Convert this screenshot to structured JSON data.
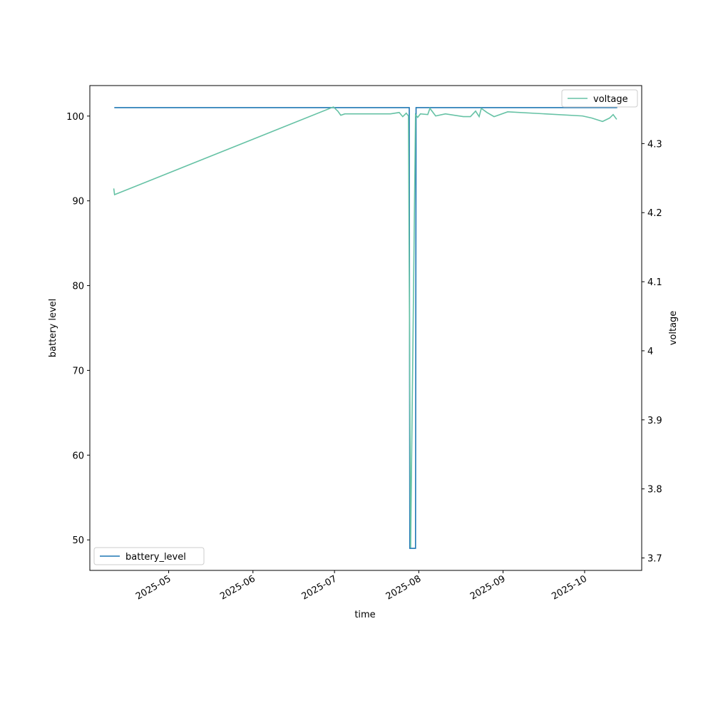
{
  "chart_data": {
    "type": "line",
    "x_label": "time",
    "y_label": "battery level",
    "y2_label": "voltage",
    "xlim": [
      20180,
      20383
    ],
    "xticks": [
      {
        "value": 20209,
        "label": "2025-05"
      },
      {
        "value": 20240,
        "label": "2025-06"
      },
      {
        "value": 20270,
        "label": "2025-07"
      },
      {
        "value": 20301,
        "label": "2025-08"
      },
      {
        "value": 20332,
        "label": "2025-09"
      },
      {
        "value": 20362,
        "label": "2025-10"
      }
    ],
    "ylim": [
      46.4,
      103.6
    ],
    "yticks": [
      50,
      60,
      70,
      80,
      90,
      100
    ],
    "y2lim": [
      3.682,
      4.384
    ],
    "y2ticks": [
      3.7,
      3.8,
      3.9,
      4.0,
      4.1,
      4.2,
      4.3
    ],
    "series": [
      {
        "name": "battery_level",
        "color": "#1f77b4",
        "legend": "lower left",
        "x": [
          20189,
          20297.5,
          20297.7,
          20299.8,
          20300,
          20374
        ],
        "values": [
          101,
          101,
          49,
          49,
          101,
          101
        ]
      },
      {
        "name": "voltage",
        "color": "#66c2a5",
        "axis": "y2",
        "legend": "upper right",
        "x": [
          20188.8,
          20189.1,
          20269.6,
          20271.2,
          20272.3,
          20273.8,
          20290.6,
          20293.8,
          20295.1,
          20296.4,
          20297.2,
          20298.0,
          20299.8,
          20300.6,
          20301.6,
          20304.3,
          20305.1,
          20307.2,
          20310.8,
          20317.4,
          20320.0,
          20321.9,
          20323.2,
          20324.0,
          20326.1,
          20328.7,
          20333.7,
          20361.2,
          20364.6,
          20368.6,
          20371.2,
          20372.5,
          20373.8
        ],
        "values": [
          4.235,
          4.226,
          4.353,
          4.347,
          4.341,
          4.343,
          4.343,
          4.345,
          4.339,
          4.344,
          4.34,
          3.715,
          4.342,
          4.338,
          4.343,
          4.342,
          4.351,
          4.34,
          4.343,
          4.339,
          4.339,
          4.347,
          4.339,
          4.351,
          4.345,
          4.339,
          4.346,
          4.34,
          4.337,
          4.332,
          4.337,
          4.342,
          4.335
        ]
      }
    ]
  }
}
